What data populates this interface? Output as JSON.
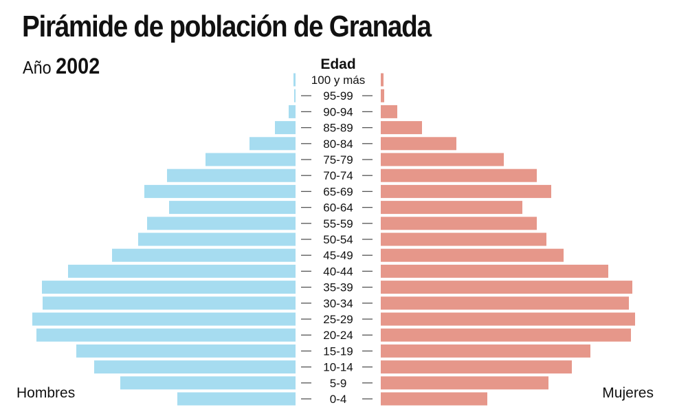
{
  "chart_data": {
    "type": "bar",
    "orientation": "horizontal-pyramid",
    "title": "Pirámide de población de Granada",
    "subtitle_prefix": "Año",
    "subtitle_year": "2002",
    "axis_label": "Edad",
    "categories": [
      "100 y más",
      "95-99",
      "90-94",
      "85-89",
      "80-84",
      "75-79",
      "70-74",
      "65-69",
      "60-64",
      "55-59",
      "50-54",
      "45-49",
      "40-44",
      "35-39",
      "30-34",
      "25-29",
      "20-24",
      "15-19",
      "10-14",
      "5-9",
      "0-4"
    ],
    "series": [
      {
        "name": "Hombres",
        "color": "#a6dcf0",
        "values": [
          3,
          2,
          10,
          30,
          67,
          131,
          187,
          220,
          184,
          216,
          229,
          267,
          331,
          369,
          368,
          383,
          377,
          319,
          293,
          255,
          172
        ]
      },
      {
        "name": "Mujeres",
        "color": "#e6978a",
        "values": [
          4,
          5,
          24,
          60,
          110,
          179,
          227,
          248,
          206,
          227,
          241,
          266,
          331,
          366,
          361,
          370,
          364,
          305,
          278,
          244,
          155
        ]
      }
    ],
    "value_scale": "relative (no axis printed)",
    "grid": false,
    "legend": "bottom-left / bottom-right labels"
  }
}
